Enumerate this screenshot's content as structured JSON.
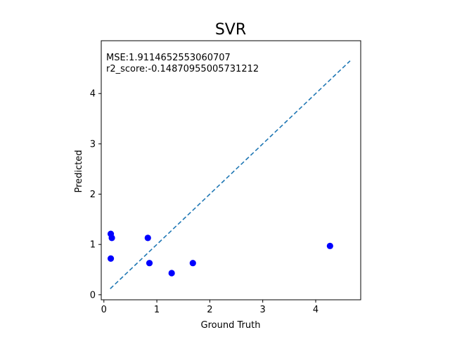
{
  "chart_data": {
    "type": "scatter",
    "title": "SVR",
    "xlabel": "Ground Truth",
    "ylabel": "Predicted",
    "xlim": [
      -0.05,
      4.85
    ],
    "ylim": [
      -0.1,
      5.05
    ],
    "xticks": [
      "0",
      "1",
      "2",
      "3",
      "4"
    ],
    "yticks": [
      "0",
      "1",
      "2",
      "3",
      "4"
    ],
    "grid": false,
    "annotations": [
      "MSE:1.9114652553060707",
      "r2_score:-0.14870955005731212"
    ],
    "reference_line": {
      "style": "dashed",
      "color": "#1f77b4",
      "from": [
        0.12,
        0.12
      ],
      "to": [
        4.65,
        4.65
      ]
    },
    "points_color": "#0000ff",
    "points": [
      {
        "x": 0.13,
        "y": 1.21
      },
      {
        "x": 0.15,
        "y": 1.13
      },
      {
        "x": 0.13,
        "y": 0.72
      },
      {
        "x": 0.83,
        "y": 1.13
      },
      {
        "x": 0.86,
        "y": 0.63
      },
      {
        "x": 1.28,
        "y": 0.43
      },
      {
        "x": 1.68,
        "y": 0.63
      },
      {
        "x": 4.27,
        "y": 0.97
      }
    ]
  }
}
